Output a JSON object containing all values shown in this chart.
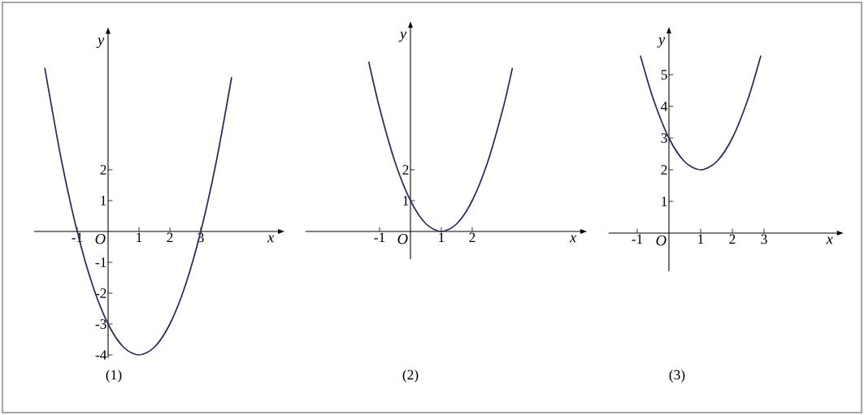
{
  "chart_data": [
    {
      "type": "line",
      "title": "(1)",
      "xlabel": "x",
      "ylabel": "y",
      "annotations": [
        "O"
      ],
      "xlim": [
        -2.4,
        5.5
      ],
      "ylim": [
        -4.1,
        6.4
      ],
      "xticks": [
        -1,
        1,
        2,
        3
      ],
      "yticks": [
        -4,
        -3,
        -2,
        -1,
        1,
        2
      ],
      "color": "#2b2b5c",
      "grid": false,
      "x": [
        -2.05,
        -1.5,
        -1,
        -0.5,
        0,
        0.5,
        1,
        1.5,
        2,
        2.5,
        3,
        3.5,
        4
      ],
      "values": [
        5.3,
        2.25,
        0,
        -1.75,
        -3,
        -3.75,
        -4,
        -3.75,
        -3,
        -1.75,
        0,
        2.25,
        5
      ]
    },
    {
      "type": "line",
      "title": "(2)",
      "xlabel": "x",
      "ylabel": "y",
      "annotations": [
        "O"
      ],
      "xlim": [
        -3.4,
        5.5
      ],
      "ylim": [
        -0.9,
        6.6
      ],
      "xticks": [
        -1,
        1,
        2
      ],
      "yticks": [
        1,
        2
      ],
      "color": "#2b2b5c",
      "grid": false,
      "x": [
        -1.35,
        -1,
        -0.5,
        0,
        0.5,
        1,
        1.5,
        2,
        2.5,
        3,
        3.3
      ],
      "values": [
        5.5,
        4,
        2.25,
        1,
        0.25,
        0,
        0.25,
        1,
        2.25,
        4,
        5.3
      ]
    },
    {
      "type": "line",
      "title": "(3)",
      "xlabel": "x",
      "ylabel": "y",
      "annotations": [
        "O"
      ],
      "xlim": [
        -1.9,
        5.3
      ],
      "ylim": [
        -1.2,
        6.3
      ],
      "xticks": [
        -1,
        1,
        2,
        3
      ],
      "yticks": [
        1,
        2,
        3,
        4,
        5
      ],
      "color": "#2b2b5c",
      "grid": false,
      "x": [
        -0.9,
        -0.5,
        0,
        0.5,
        1,
        1.5,
        2,
        2.5,
        2.9
      ],
      "values": [
        5.6,
        4.25,
        3,
        2.25,
        2,
        2.25,
        3,
        4.25,
        5.6
      ]
    }
  ]
}
